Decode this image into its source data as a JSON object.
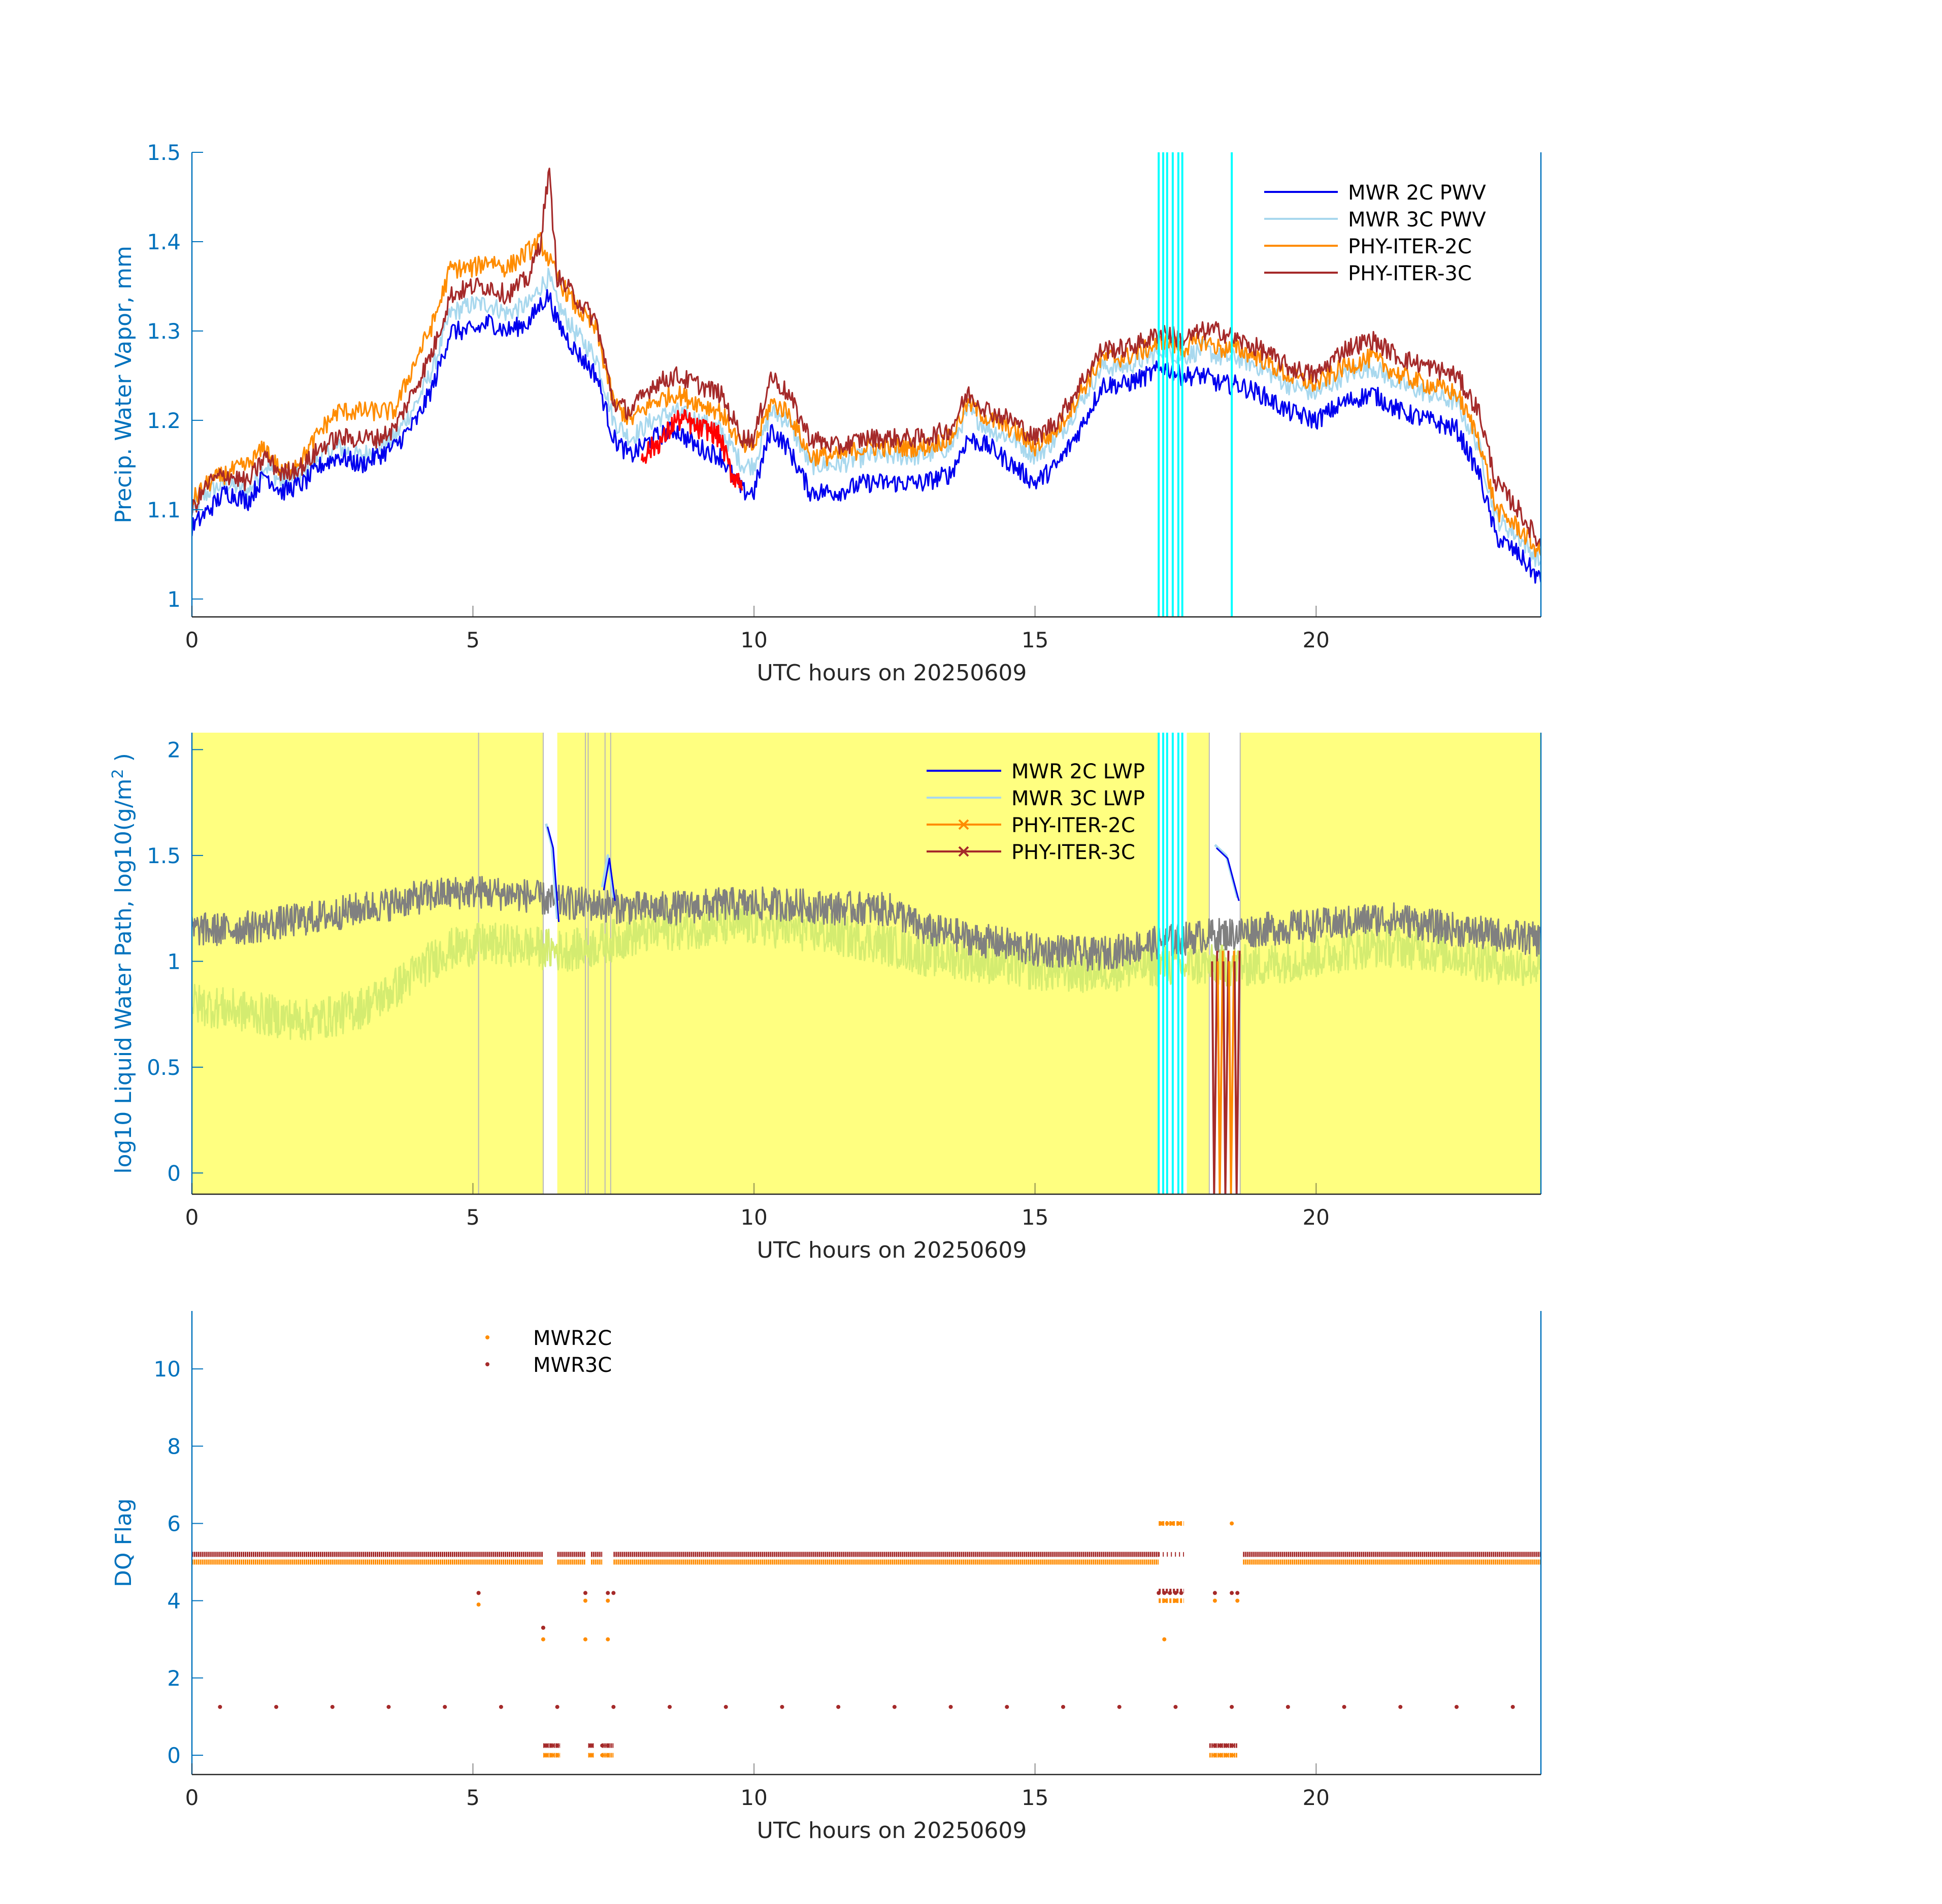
{
  "colors": {
    "axis_blue": "#0072BD",
    "tick_dark": "#262626",
    "mwr2c_pwv": "#0000EE",
    "mwr3c_pwv": "#A8D8EE",
    "phy2c": "#FF8C00",
    "phy3c": "#A52A2A",
    "flag_red": "#FF0000",
    "cyan": "#00FFFF",
    "yellow_bg": "#FFFF80",
    "grey_trace": "#808080",
    "green_trace": "#D4EC70",
    "flag2c": "#FF8C00",
    "flag3c": "#A52A2A"
  },
  "chart_data": [
    {
      "id": "pwv",
      "type": "line",
      "title": "",
      "xlabel": "UTC hours on 20250609",
      "ylabel": "Precip. Water Vapor, mm",
      "xlim": [
        0,
        24
      ],
      "ylim": [
        0.98,
        1.5
      ],
      "xticks": [
        0,
        5,
        10,
        15,
        20
      ],
      "yticks": [
        1,
        1.1,
        1.2,
        1.3,
        1.4,
        1.5
      ],
      "ytick_labels": [
        "1",
        "1.1",
        "1.2",
        "1.3",
        "1.4",
        "1.5"
      ],
      "legend": [
        "MWR 2C PWV",
        "MWR 3C PWV",
        "PHY-ITER-2C",
        "PHY-ITER-3C"
      ],
      "legend_position": "top-right",
      "x": [
        0,
        0.3,
        0.6,
        1.0,
        1.3,
        1.6,
        2.0,
        2.3,
        2.6,
        3.0,
        3.3,
        3.6,
        4.0,
        4.3,
        4.6,
        5.0,
        5.3,
        5.6,
        6.0,
        6.2,
        6.35,
        6.5,
        6.8,
        7.2,
        7.5,
        7.8,
        8.2,
        8.6,
        9.0,
        9.4,
        9.8,
        10.0,
        10.3,
        10.6,
        11.0,
        11.5,
        12.0,
        12.5,
        13.0,
        13.5,
        13.8,
        14.2,
        14.6,
        15.0,
        15.4,
        15.8,
        16.2,
        16.6,
        17.0,
        17.3,
        17.6,
        18.0,
        18.3,
        18.6,
        19.0,
        19.5,
        20.0,
        20.5,
        21.0,
        21.5,
        22.0,
        22.5,
        22.9,
        23.2,
        23.6,
        24.0
      ],
      "series": [
        {
          "name": "MWR 2C PWV",
          "values": [
            1.08,
            1.1,
            1.12,
            1.11,
            1.14,
            1.12,
            1.13,
            1.15,
            1.16,
            1.15,
            1.16,
            1.17,
            1.2,
            1.24,
            1.3,
            1.3,
            1.31,
            1.3,
            1.31,
            1.33,
            1.34,
            1.31,
            1.28,
            1.25,
            1.18,
            1.16,
            1.18,
            1.19,
            1.17,
            1.16,
            1.12,
            1.12,
            1.19,
            1.17,
            1.12,
            1.12,
            1.13,
            1.13,
            1.13,
            1.14,
            1.18,
            1.17,
            1.15,
            1.13,
            1.15,
            1.19,
            1.24,
            1.24,
            1.25,
            1.26,
            1.25,
            1.25,
            1.24,
            1.24,
            1.23,
            1.21,
            1.2,
            1.22,
            1.23,
            1.21,
            1.2,
            1.19,
            1.14,
            1.07,
            1.05,
            1.02
          ]
        },
        {
          "name": "MWR 3C PWV",
          "values": [
            1.1,
            1.12,
            1.13,
            1.12,
            1.15,
            1.13,
            1.14,
            1.16,
            1.17,
            1.16,
            1.17,
            1.18,
            1.22,
            1.26,
            1.32,
            1.33,
            1.33,
            1.32,
            1.33,
            1.35,
            1.36,
            1.33,
            1.3,
            1.27,
            1.2,
            1.18,
            1.2,
            1.21,
            1.2,
            1.19,
            1.15,
            1.15,
            1.21,
            1.2,
            1.15,
            1.15,
            1.16,
            1.16,
            1.16,
            1.17,
            1.21,
            1.19,
            1.18,
            1.16,
            1.18,
            1.22,
            1.26,
            1.26,
            1.27,
            1.28,
            1.27,
            1.28,
            1.27,
            1.27,
            1.26,
            1.24,
            1.23,
            1.25,
            1.26,
            1.24,
            1.23,
            1.22,
            1.17,
            1.09,
            1.07,
            1.04
          ]
        },
        {
          "name": "PHY-ITER-2C",
          "values": [
            1.11,
            1.13,
            1.14,
            1.15,
            1.17,
            1.14,
            1.16,
            1.19,
            1.21,
            1.21,
            1.21,
            1.21,
            1.27,
            1.31,
            1.37,
            1.37,
            1.38,
            1.37,
            1.39,
            1.4,
            1.38,
            1.36,
            1.33,
            1.3,
            1.22,
            1.2,
            1.22,
            1.23,
            1.22,
            1.21,
            1.17,
            1.17,
            1.22,
            1.21,
            1.16,
            1.16,
            1.17,
            1.17,
            1.17,
            1.18,
            1.22,
            1.2,
            1.19,
            1.17,
            1.19,
            1.23,
            1.27,
            1.27,
            1.28,
            1.29,
            1.28,
            1.29,
            1.28,
            1.28,
            1.27,
            1.25,
            1.24,
            1.26,
            1.27,
            1.25,
            1.24,
            1.23,
            1.18,
            1.1,
            1.08,
            1.05
          ]
        },
        {
          "name": "PHY-ITER-3C",
          "values": [
            1.1,
            1.13,
            1.14,
            1.13,
            1.16,
            1.14,
            1.15,
            1.17,
            1.18,
            1.18,
            1.18,
            1.19,
            1.24,
            1.28,
            1.34,
            1.35,
            1.35,
            1.34,
            1.36,
            1.4,
            1.48,
            1.36,
            1.34,
            1.31,
            1.22,
            1.21,
            1.24,
            1.25,
            1.24,
            1.23,
            1.18,
            1.18,
            1.25,
            1.23,
            1.18,
            1.17,
            1.18,
            1.18,
            1.18,
            1.19,
            1.23,
            1.21,
            1.2,
            1.18,
            1.2,
            1.24,
            1.28,
            1.28,
            1.29,
            1.3,
            1.29,
            1.3,
            1.3,
            1.29,
            1.28,
            1.26,
            1.25,
            1.28,
            1.29,
            1.27,
            1.26,
            1.25,
            1.21,
            1.13,
            1.1,
            1.06
          ]
        }
      ],
      "flagged_segment": {
        "x": [
          8.0,
          8.2,
          8.4,
          8.6,
          8.8,
          9.0,
          9.2,
          9.4,
          9.6,
          9.8
        ],
        "values": [
          1.16,
          1.17,
          1.18,
          1.2,
          1.2,
          1.19,
          1.19,
          1.18,
          1.14,
          1.13
        ]
      },
      "cyan_lines_x": [
        17.2,
        17.28,
        17.35,
        17.45,
        17.55,
        17.62,
        18.5
      ]
    },
    {
      "id": "lwp",
      "type": "line",
      "title": "",
      "xlabel": "UTC hours on 20250609",
      "ylabel": "log10 Liquid Water Path, log10(g/m",
      "ylabel_sup": "2",
      "ylabel_end": ")",
      "xlim": [
        0,
        24
      ],
      "ylim": [
        -0.1,
        2.08
      ],
      "xticks": [
        0,
        5,
        10,
        15,
        20
      ],
      "yticks": [
        0,
        0.5,
        1,
        1.5,
        2
      ],
      "ytick_labels": [
        "0",
        "0.5",
        "1",
        "1.5",
        "2"
      ],
      "legend": [
        "MWR 2C LWP",
        "MWR 3C LWP",
        "PHY-ITER-2C",
        "PHY-ITER-3C"
      ],
      "legend_position": "top-right",
      "yellow_bands": [
        [
          0,
          6.25
        ],
        [
          6.5,
          17.2
        ],
        [
          17.7,
          18.1
        ],
        [
          18.65,
          24
        ]
      ],
      "white_gaps": [
        [
          6.25,
          6.5
        ],
        [
          7.0,
          7.08
        ],
        [
          7.35,
          7.45
        ],
        [
          18.1,
          18.65
        ]
      ],
      "x": [
        0,
        0.5,
        1.0,
        1.5,
        2.0,
        2.5,
        3.0,
        3.5,
        4.0,
        4.5,
        5.0,
        5.5,
        6.0,
        6.5,
        7.0,
        7.5,
        8.0,
        8.5,
        9.0,
        9.5,
        10.0,
        10.5,
        11.0,
        11.5,
        12.0,
        12.5,
        13.0,
        13.5,
        14.0,
        14.5,
        15.0,
        15.5,
        16.0,
        16.5,
        17.0,
        17.5,
        18.0,
        18.5,
        19.0,
        19.5,
        20.0,
        20.5,
        21.0,
        21.5,
        22.0,
        22.5,
        23.0,
        23.5,
        24.0
      ],
      "series": [
        {
          "name": "grey trace",
          "values": [
            1.15,
            1.15,
            1.16,
            1.18,
            1.2,
            1.22,
            1.25,
            1.27,
            1.3,
            1.32,
            1.33,
            1.32,
            1.31,
            1.28,
            1.27,
            1.26,
            1.25,
            1.25,
            1.26,
            1.27,
            1.27,
            1.27,
            1.26,
            1.25,
            1.25,
            1.24,
            1.15,
            1.13,
            1.1,
            1.08,
            1.05,
            1.05,
            1.03,
            1.05,
            1.08,
            1.1,
            1.12,
            1.13,
            1.15,
            1.16,
            1.17,
            1.18,
            1.2,
            1.2,
            1.17,
            1.15,
            1.13,
            1.12,
            1.1
          ]
        },
        {
          "name": "green trace",
          "values": [
            0.8,
            0.78,
            0.76,
            0.74,
            0.72,
            0.74,
            0.78,
            0.85,
            0.95,
            1.05,
            1.08,
            1.08,
            1.07,
            1.05,
            1.06,
            1.1,
            1.13,
            1.15,
            1.16,
            1.17,
            1.17,
            1.16,
            1.14,
            1.12,
            1.1,
            1.07,
            1.03,
            1.02,
            1.0,
            0.98,
            0.96,
            0.95,
            0.95,
            0.96,
            0.98,
            0.98,
            0.98,
            0.98,
            0.98,
            1.0,
            1.02,
            1.05,
            1.07,
            1.07,
            1.05,
            1.03,
            1.0,
            0.98,
            0.98
          ]
        }
      ],
      "mwr2c_spikes": [
        {
          "x": [
            6.3,
            6.4,
            6.5
          ],
          "values": [
            1.65,
            1.55,
            1.2
          ]
        },
        {
          "x": [
            7.3,
            7.4,
            7.5
          ],
          "values": [
            1.35,
            1.5,
            1.3
          ]
        },
        {
          "x": [
            18.2,
            18.4,
            18.6
          ],
          "values": [
            1.55,
            1.5,
            1.3
          ]
        }
      ],
      "phy_drops_x": [
        18.15,
        18.25,
        18.35,
        18.45,
        18.55
      ],
      "cyan_lines_x": [
        17.2,
        17.28,
        17.35,
        17.45,
        17.55,
        17.62
      ]
    },
    {
      "id": "dq",
      "type": "scatter",
      "title": "",
      "xlabel": "UTC hours on 20250609",
      "ylabel": "DQ Flag",
      "xlim": [
        0,
        24
      ],
      "ylim": [
        -0.5,
        11.5
      ],
      "xticks": [
        0,
        5,
        10,
        15,
        20
      ],
      "yticks": [
        0,
        2,
        4,
        6,
        8,
        10
      ],
      "ytick_labels": [
        "0",
        "2",
        "4",
        "6",
        "8",
        "10"
      ],
      "legend": [
        "MWR2C",
        "MWR3C"
      ],
      "legend_position": "top-left",
      "series": [
        {
          "name": "MWR2C",
          "baseline_value": 5.0,
          "baseline_ranges": [
            [
              0,
              6.25
            ],
            [
              6.5,
              7.0
            ],
            [
              7.1,
              7.3
            ],
            [
              7.5,
              17.2
            ],
            [
              18.7,
              24
            ]
          ],
          "points": [
            [
              5.1,
              3.9
            ],
            [
              5.1,
              4.2
            ],
            [
              6.25,
              3.0
            ],
            [
              6.25,
              3.3
            ],
            [
              7.0,
              4.0
            ],
            [
              7.0,
              3.0
            ],
            [
              7.4,
              3.0
            ],
            [
              7.4,
              4.0
            ],
            [
              17.25,
              6.0
            ],
            [
              17.35,
              6.0
            ],
            [
              17.45,
              6.0
            ],
            [
              17.55,
              6.0
            ],
            [
              17.3,
              3.0
            ],
            [
              17.3,
              4.0
            ],
            [
              17.5,
              4.0
            ],
            [
              18.5,
              6.0
            ],
            [
              18.6,
              4.0
            ],
            [
              18.2,
              4.0
            ],
            [
              6.3,
              0.0
            ],
            [
              6.4,
              0.0
            ],
            [
              6.5,
              0.0
            ],
            [
              7.1,
              0.0
            ],
            [
              7.3,
              0.0
            ],
            [
              7.4,
              0.0
            ],
            [
              18.2,
              0.0
            ],
            [
              18.3,
              0.0
            ],
            [
              18.4,
              0.0
            ],
            [
              18.5,
              0.0
            ]
          ]
        },
        {
          "name": "MWR3C",
          "baseline_value": 5.2,
          "baseline_ranges": [
            [
              0,
              6.25
            ],
            [
              6.5,
              7.0
            ],
            [
              7.1,
              7.3
            ],
            [
              7.5,
              17.2
            ],
            [
              18.7,
              24
            ]
          ],
          "points": [
            [
              5.1,
              4.2
            ],
            [
              6.25,
              3.3
            ],
            [
              7.0,
              4.2
            ],
            [
              7.4,
              4.2
            ],
            [
              7.5,
              4.2
            ],
            [
              17.2,
              4.2
            ],
            [
              17.3,
              4.2
            ],
            [
              17.4,
              4.2
            ],
            [
              17.5,
              4.2
            ],
            [
              17.6,
              4.2
            ],
            [
              18.2,
              4.2
            ],
            [
              18.5,
              4.2
            ],
            [
              18.6,
              4.2
            ],
            [
              6.3,
              0.25
            ],
            [
              6.4,
              0.25
            ],
            [
              6.5,
              0.25
            ],
            [
              7.1,
              0.25
            ],
            [
              7.3,
              0.25
            ],
            [
              7.4,
              0.25
            ],
            [
              18.2,
              0.25
            ],
            [
              18.3,
              0.25
            ],
            [
              18.4,
              0.25
            ],
            [
              18.5,
              0.25
            ]
          ],
          "periodic_value": 1.25,
          "periodic_x": [
            0.5,
            1.5,
            2.5,
            3.5,
            4.5,
            5.5,
            6.5,
            7.5,
            8.5,
            9.5,
            10.5,
            11.5,
            12.5,
            13.5,
            14.5,
            15.5,
            16.5,
            17.5,
            18.5,
            19.5,
            20.5,
            21.5,
            22.5,
            23.5
          ]
        }
      ]
    }
  ]
}
